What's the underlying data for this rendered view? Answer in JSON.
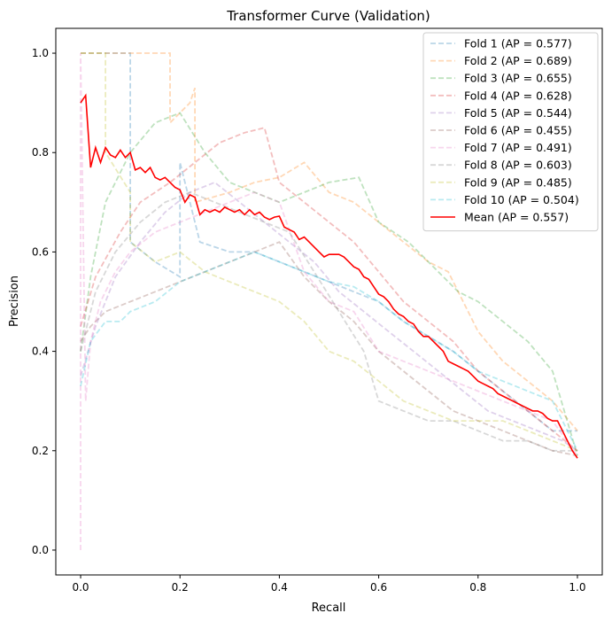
{
  "chart_data": {
    "type": "line",
    "title": "Transformer Curve (Validation)",
    "xlabel": "Recall",
    "ylabel": "Precision",
    "xlim": [
      -0.05,
      1.05
    ],
    "ylim": [
      -0.05,
      1.05
    ],
    "xticks": [
      "0.0",
      "0.2",
      "0.4",
      "0.6",
      "0.8",
      "1.0"
    ],
    "yticks": [
      "0.0",
      "0.2",
      "0.4",
      "0.6",
      "0.8",
      "1.0"
    ],
    "grid": false,
    "legend_position": "top-right",
    "series": [
      {
        "name": "Fold 1 (AP = 0.577)",
        "color": "#1f77b4",
        "style": "dashed",
        "alpha": 0.3,
        "x": [
          0.0,
          0.0,
          0.1,
          0.1,
          0.15,
          0.2,
          0.2,
          0.24,
          0.3,
          0.35,
          0.4,
          0.45,
          0.5,
          0.55,
          0.6,
          0.65,
          0.7,
          0.75,
          0.8,
          0.85,
          0.9,
          0.95,
          1.0
        ],
        "y": [
          1.0,
          1.0,
          1.0,
          0.62,
          0.58,
          0.55,
          0.78,
          0.62,
          0.6,
          0.6,
          0.58,
          0.56,
          0.54,
          0.52,
          0.5,
          0.46,
          0.43,
          0.4,
          0.36,
          0.32,
          0.28,
          0.24,
          0.24
        ]
      },
      {
        "name": "Fold 2 (AP = 0.689)",
        "color": "#ff7f0e",
        "style": "dashed",
        "alpha": 0.3,
        "x": [
          0.0,
          0.0,
          0.18,
          0.18,
          0.22,
          0.23,
          0.23,
          0.3,
          0.35,
          0.4,
          0.45,
          0.5,
          0.55,
          0.6,
          0.65,
          0.7,
          0.74,
          0.8,
          0.85,
          0.9,
          0.95,
          1.0
        ],
        "y": [
          1.0,
          1.0,
          1.0,
          0.86,
          0.9,
          0.93,
          0.7,
          0.72,
          0.74,
          0.75,
          0.78,
          0.72,
          0.7,
          0.66,
          0.62,
          0.58,
          0.56,
          0.44,
          0.38,
          0.34,
          0.3,
          0.24
        ]
      },
      {
        "name": "Fold 3 (AP = 0.655)",
        "color": "#2ca02c",
        "style": "dashed",
        "alpha": 0.3,
        "x": [
          0.0,
          0.02,
          0.05,
          0.1,
          0.15,
          0.2,
          0.25,
          0.3,
          0.35,
          0.4,
          0.45,
          0.5,
          0.56,
          0.6,
          0.66,
          0.7,
          0.76,
          0.8,
          0.85,
          0.9,
          0.95,
          1.0
        ],
        "y": [
          0.4,
          0.55,
          0.7,
          0.8,
          0.86,
          0.88,
          0.8,
          0.74,
          0.72,
          0.7,
          0.72,
          0.74,
          0.75,
          0.66,
          0.62,
          0.58,
          0.52,
          0.5,
          0.46,
          0.42,
          0.36,
          0.19
        ]
      },
      {
        "name": "Fold 4 (AP = 0.628)",
        "color": "#d62728",
        "style": "dashed",
        "alpha": 0.3,
        "x": [
          0.0,
          0.03,
          0.08,
          0.12,
          0.18,
          0.23,
          0.28,
          0.33,
          0.37,
          0.4,
          0.45,
          0.5,
          0.55,
          0.6,
          0.65,
          0.7,
          0.75,
          0.8,
          0.85,
          0.9,
          0.95,
          1.0
        ],
        "y": [
          0.45,
          0.55,
          0.64,
          0.7,
          0.74,
          0.78,
          0.82,
          0.84,
          0.85,
          0.74,
          0.7,
          0.66,
          0.62,
          0.56,
          0.5,
          0.46,
          0.42,
          0.36,
          0.32,
          0.28,
          0.24,
          0.2
        ]
      },
      {
        "name": "Fold 5 (AP = 0.544)",
        "color": "#9467bd",
        "style": "dashed",
        "alpha": 0.3,
        "x": [
          0.0,
          0.03,
          0.07,
          0.12,
          0.17,
          0.22,
          0.27,
          0.32,
          0.37,
          0.42,
          0.47,
          0.52,
          0.57,
          0.62,
          0.67,
          0.72,
          0.77,
          0.82,
          0.87,
          0.92,
          0.97,
          1.0
        ],
        "y": [
          0.35,
          0.45,
          0.55,
          0.62,
          0.68,
          0.72,
          0.74,
          0.7,
          0.66,
          0.62,
          0.58,
          0.52,
          0.48,
          0.44,
          0.4,
          0.36,
          0.32,
          0.28,
          0.26,
          0.24,
          0.22,
          0.2
        ]
      },
      {
        "name": "Fold 6 (AP = 0.455)",
        "color": "#8c564b",
        "style": "dashed",
        "alpha": 0.3,
        "x": [
          0.0,
          0.02,
          0.05,
          0.1,
          0.15,
          0.2,
          0.25,
          0.3,
          0.35,
          0.4,
          0.45,
          0.5,
          0.55,
          0.6,
          0.65,
          0.7,
          0.75,
          0.8,
          0.85,
          0.9,
          0.95,
          1.0
        ],
        "y": [
          0.42,
          0.45,
          0.48,
          0.5,
          0.52,
          0.54,
          0.56,
          0.58,
          0.6,
          0.62,
          0.55,
          0.5,
          0.46,
          0.4,
          0.36,
          0.32,
          0.28,
          0.26,
          0.24,
          0.22,
          0.2,
          0.19
        ]
      },
      {
        "name": "Fold 7 (AP = 0.491)",
        "color": "#e377c2",
        "style": "dashed",
        "alpha": 0.3,
        "x": [
          0.0,
          0.0,
          0.01,
          0.02,
          0.04,
          0.07,
          0.1,
          0.15,
          0.2,
          0.25,
          0.3,
          0.35,
          0.4,
          0.45,
          0.5,
          0.55,
          0.6,
          0.65,
          0.7,
          0.75,
          0.8,
          0.85,
          0.9,
          0.95,
          1.0
        ],
        "y": [
          0.0,
          1.0,
          0.3,
          0.42,
          0.5,
          0.56,
          0.6,
          0.64,
          0.66,
          0.68,
          0.7,
          0.72,
          0.7,
          0.56,
          0.5,
          0.48,
          0.4,
          0.38,
          0.36,
          0.34,
          0.32,
          0.3,
          0.28,
          0.26,
          0.19
        ]
      },
      {
        "name": "Fold 8 (AP = 0.603)",
        "color": "#7f7f7f",
        "style": "dashed",
        "alpha": 0.3,
        "x": [
          0.0,
          0.03,
          0.07,
          0.12,
          0.17,
          0.22,
          0.27,
          0.32,
          0.37,
          0.42,
          0.47,
          0.52,
          0.57,
          0.6,
          0.65,
          0.7,
          0.75,
          0.8,
          0.85,
          0.9,
          0.95,
          1.0
        ],
        "y": [
          0.4,
          0.52,
          0.6,
          0.66,
          0.7,
          0.72,
          0.7,
          0.68,
          0.66,
          0.64,
          0.56,
          0.48,
          0.4,
          0.3,
          0.28,
          0.26,
          0.26,
          0.24,
          0.22,
          0.22,
          0.2,
          0.2
        ]
      },
      {
        "name": "Fold 9 (AP = 0.485)",
        "color": "#bcbd22",
        "style": "dashed",
        "alpha": 0.3,
        "x": [
          0.0,
          0.0,
          0.05,
          0.05,
          0.1,
          0.1,
          0.15,
          0.2,
          0.25,
          0.3,
          0.35,
          0.4,
          0.45,
          0.5,
          0.55,
          0.6,
          0.65,
          0.7,
          0.75,
          0.8,
          0.85,
          0.9,
          0.95,
          1.0
        ],
        "y": [
          1.0,
          1.0,
          1.0,
          0.8,
          0.72,
          0.62,
          0.58,
          0.6,
          0.56,
          0.54,
          0.52,
          0.5,
          0.46,
          0.4,
          0.38,
          0.34,
          0.3,
          0.28,
          0.26,
          0.26,
          0.26,
          0.24,
          0.22,
          0.2
        ]
      },
      {
        "name": "Fold 10 (AP = 0.504)",
        "color": "#17becf",
        "style": "dashed",
        "alpha": 0.3,
        "x": [
          0.0,
          0.02,
          0.05,
          0.08,
          0.1,
          0.15,
          0.2,
          0.25,
          0.3,
          0.35,
          0.4,
          0.45,
          0.5,
          0.55,
          0.6,
          0.65,
          0.7,
          0.75,
          0.8,
          0.85,
          0.9,
          0.95,
          1.0
        ],
        "y": [
          0.33,
          0.42,
          0.46,
          0.46,
          0.48,
          0.5,
          0.54,
          0.56,
          0.58,
          0.6,
          0.58,
          0.56,
          0.54,
          0.53,
          0.5,
          0.46,
          0.43,
          0.4,
          0.36,
          0.34,
          0.32,
          0.3,
          0.2
        ]
      },
      {
        "name": "Mean (AP = 0.557)",
        "color": "#ff0000",
        "style": "solid",
        "alpha": 1.0,
        "x": [
          0.0,
          0.01,
          0.02,
          0.03,
          0.04,
          0.05,
          0.06,
          0.07,
          0.08,
          0.09,
          0.1,
          0.11,
          0.12,
          0.13,
          0.14,
          0.15,
          0.16,
          0.17,
          0.18,
          0.19,
          0.2,
          0.21,
          0.22,
          0.23,
          0.24,
          0.25,
          0.26,
          0.27,
          0.28,
          0.29,
          0.3,
          0.31,
          0.32,
          0.33,
          0.34,
          0.35,
          0.36,
          0.37,
          0.38,
          0.39,
          0.4,
          0.41,
          0.42,
          0.43,
          0.44,
          0.45,
          0.46,
          0.47,
          0.48,
          0.49,
          0.5,
          0.51,
          0.52,
          0.53,
          0.54,
          0.55,
          0.56,
          0.57,
          0.58,
          0.59,
          0.6,
          0.61,
          0.62,
          0.63,
          0.64,
          0.65,
          0.66,
          0.67,
          0.68,
          0.69,
          0.7,
          0.71,
          0.72,
          0.73,
          0.74,
          0.75,
          0.76,
          0.77,
          0.78,
          0.79,
          0.8,
          0.81,
          0.82,
          0.83,
          0.84,
          0.85,
          0.86,
          0.87,
          0.88,
          0.89,
          0.9,
          0.91,
          0.92,
          0.93,
          0.94,
          0.95,
          0.96,
          0.97,
          0.98,
          0.99,
          1.0
        ],
        "y": [
          0.9,
          0.915,
          0.77,
          0.81,
          0.78,
          0.81,
          0.795,
          0.79,
          0.805,
          0.79,
          0.8,
          0.765,
          0.77,
          0.76,
          0.77,
          0.75,
          0.745,
          0.75,
          0.74,
          0.73,
          0.725,
          0.7,
          0.715,
          0.71,
          0.675,
          0.685,
          0.68,
          0.685,
          0.68,
          0.69,
          0.685,
          0.68,
          0.685,
          0.675,
          0.685,
          0.675,
          0.68,
          0.67,
          0.665,
          0.67,
          0.672,
          0.65,
          0.645,
          0.64,
          0.625,
          0.63,
          0.62,
          0.61,
          0.6,
          0.59,
          0.595,
          0.595,
          0.595,
          0.59,
          0.58,
          0.57,
          0.565,
          0.55,
          0.545,
          0.53,
          0.515,
          0.51,
          0.5,
          0.485,
          0.475,
          0.47,
          0.46,
          0.455,
          0.44,
          0.43,
          0.43,
          0.42,
          0.41,
          0.4,
          0.38,
          0.375,
          0.37,
          0.365,
          0.36,
          0.35,
          0.34,
          0.335,
          0.33,
          0.325,
          0.315,
          0.31,
          0.305,
          0.3,
          0.295,
          0.29,
          0.285,
          0.28,
          0.28,
          0.275,
          0.265,
          0.26,
          0.26,
          0.24,
          0.22,
          0.2,
          0.185
        ]
      }
    ]
  }
}
